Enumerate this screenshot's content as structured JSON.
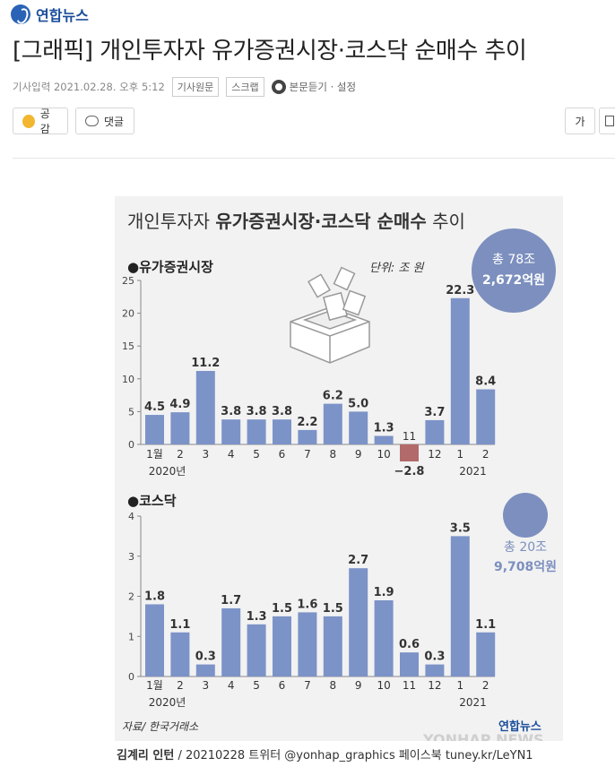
{
  "site": {
    "logo_text": "연합뉴스"
  },
  "article": {
    "headline": "[그래픽] 개인투자자 유가증권시장·코스닥 순매수 추이",
    "timestamp": "기사입력 2021.02.28. 오후 5:12",
    "original_label": "기사원문",
    "scrap_label": "스크랩",
    "listen_label": "본문듣기 · 설정"
  },
  "actions": {
    "like_label": "공감",
    "comment_label": "댓글",
    "font_label": "가"
  },
  "graphic": {
    "title_plain": "개인투자자 ",
    "title_bold": "유가증권시장·코스닥 순매수",
    "title_end": " 추이",
    "unit": "단위: 조 원",
    "source": "자료/ 한국거래소",
    "brand": "연합뉴스",
    "watermark": "YONHAP NEWS",
    "year_labels": [
      "2020년",
      "2021"
    ]
  },
  "chart_data": [
    {
      "type": "bar",
      "title": "●유가증권시장",
      "categories": [
        "1월",
        "2",
        "3",
        "4",
        "5",
        "6",
        "7",
        "8",
        "9",
        "10",
        "11",
        "12",
        "1",
        "2"
      ],
      "values": [
        4.5,
        4.9,
        11.2,
        3.8,
        3.8,
        3.8,
        2.2,
        6.2,
        5.0,
        1.3,
        -2.8,
        3.7,
        22.3,
        8.4
      ],
      "value_labels": [
        "4.5",
        "4.9",
        "11.2",
        "3.8",
        "3.8",
        "3.8",
        "2.2",
        "6.2",
        "5.0",
        "1.3",
        "−2.8",
        "3.7",
        "22.3",
        "8.4"
      ],
      "ylim": [
        0,
        25
      ],
      "yticks": [
        "0",
        "5",
        "10",
        "15",
        "20",
        "25"
      ],
      "total_line1": "총 78조",
      "total_line2": "2,672억원",
      "bar_color": "#7c93c8",
      "negative_color": "#b36a6a"
    },
    {
      "type": "bar",
      "title": "●코스닥",
      "categories": [
        "1월",
        "2",
        "3",
        "4",
        "5",
        "6",
        "7",
        "8",
        "9",
        "10",
        "11",
        "12",
        "1",
        "2"
      ],
      "values": [
        1.8,
        1.1,
        0.3,
        1.7,
        1.3,
        1.5,
        1.6,
        1.5,
        2.7,
        1.9,
        0.6,
        0.3,
        3.5,
        1.1
      ],
      "value_labels": [
        "1.8",
        "1.1",
        "0.3",
        "1.7",
        "1.3",
        "1.5",
        "1.6",
        "1.5",
        "2.7",
        "1.9",
        "0.6",
        "0.3",
        "3.5",
        "1.1"
      ],
      "ylim": [
        0,
        4
      ],
      "yticks": [
        "0",
        "1",
        "2",
        "3",
        "4"
      ],
      "total_line1": "총 20조",
      "total_line2": "9,708억원",
      "bar_color": "#7c93c8"
    }
  ],
  "caption": {
    "author": "김계리 인턴",
    "rest": " / 20210228  트위터 @yonhap_graphics  페이스북 tuney.kr/LeYN1"
  }
}
